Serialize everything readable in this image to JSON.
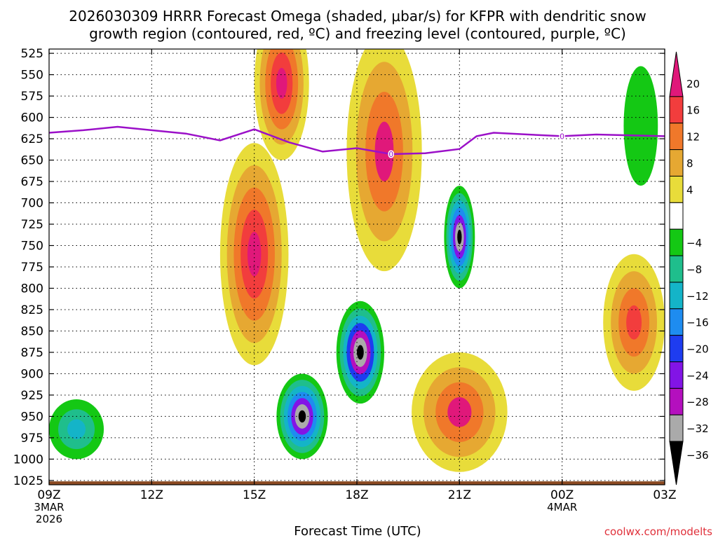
{
  "chart_data": {
    "type": "contour-time-height",
    "title": "2026030309 HRRR Forecast Omega (shaded, μbar/s) for KFPR with dendritic snow growth region (contoured, red, ºC) and freezing level (contoured, purple, ºC)",
    "title_line1": "2026030309 HRRR Forecast Omega (shaded, μbar/s) for KFPR with dendritic snow",
    "title_line2": "growth region (contoured, red, ºC) and freezing level (contoured, purple, ºC)",
    "xlabel": "Forecast Time (UTC)",
    "credit": "coolwx.com/modelts",
    "x_range_hours": [
      0,
      18
    ],
    "y_range_hpa": [
      1030,
      520
    ],
    "pressure_levels": [
      525,
      550,
      575,
      600,
      625,
      650,
      675,
      700,
      725,
      750,
      775,
      800,
      825,
      850,
      875,
      900,
      925,
      950,
      975,
      1000,
      1025
    ],
    "x_ticks": [
      {
        "hour": 0,
        "label": "09Z",
        "date1": "3MAR",
        "date2": "2026"
      },
      {
        "hour": 3,
        "label": "12Z"
      },
      {
        "hour": 6,
        "label": "15Z"
      },
      {
        "hour": 9,
        "label": "18Z"
      },
      {
        "hour": 12,
        "label": "21Z"
      },
      {
        "hour": 15,
        "label": "00Z",
        "date1": "4MAR"
      },
      {
        "hour": 18,
        "label": "03Z"
      }
    ],
    "colorbar": {
      "labels": [
        "20",
        "16",
        "12",
        "8",
        "4",
        "−4",
        "−8",
        "−12",
        "−16",
        "−20",
        "−24",
        "−28",
        "−32",
        "−36"
      ],
      "bins": [
        {
          "lo": 20,
          "hi": 24,
          "color": "#e0187a"
        },
        {
          "lo": 16,
          "hi": 20,
          "color": "#f23d3d"
        },
        {
          "lo": 12,
          "hi": 16,
          "color": "#f0782a"
        },
        {
          "lo": 8,
          "hi": 12,
          "color": "#e6a832"
        },
        {
          "lo": 4,
          "hi": 8,
          "color": "#e8dc3a"
        },
        {
          "lo": -4,
          "hi": 4,
          "color": "#ffffff"
        },
        {
          "lo": -8,
          "hi": -4,
          "color": "#14c814"
        },
        {
          "lo": -12,
          "hi": -8,
          "color": "#1fbe8c"
        },
        {
          "lo": -16,
          "hi": -12,
          "color": "#14b4c8"
        },
        {
          "lo": -20,
          "hi": -16,
          "color": "#1e8cf0"
        },
        {
          "lo": -24,
          "hi": -20,
          "color": "#1e3cf0"
        },
        {
          "lo": -28,
          "hi": -24,
          "color": "#8214e6"
        },
        {
          "lo": -32,
          "hi": -28,
          "color": "#b40fbe"
        },
        {
          "lo": -36,
          "hi": -32,
          "color": "#aaaaaa"
        },
        {
          "lo": -40,
          "hi": -36,
          "color": "#000000"
        }
      ]
    },
    "freezing_level": {
      "label": "0",
      "color": "#9b10c8",
      "points": [
        {
          "h": 0,
          "p": 618
        },
        {
          "h": 1,
          "p": 615
        },
        {
          "h": 2,
          "p": 611
        },
        {
          "h": 3,
          "p": 615
        },
        {
          "h": 4,
          "p": 619
        },
        {
          "h": 5,
          "p": 627
        },
        {
          "h": 6,
          "p": 614
        },
        {
          "h": 7,
          "p": 629
        },
        {
          "h": 8,
          "p": 640
        },
        {
          "h": 9,
          "p": 636
        },
        {
          "h": 10,
          "p": 643
        },
        {
          "h": 11,
          "p": 642
        },
        {
          "h": 12,
          "p": 637
        },
        {
          "h": 12.5,
          "p": 622
        },
        {
          "h": 13,
          "p": 618
        },
        {
          "h": 14,
          "p": 620
        },
        {
          "h": 15,
          "p": 622
        },
        {
          "h": 16,
          "p": 620
        },
        {
          "h": 17,
          "p": 621
        },
        {
          "h": 18,
          "p": 622
        }
      ],
      "label_points": [
        {
          "h": 10,
          "p": 643
        },
        {
          "h": 15,
          "p": 622
        }
      ]
    },
    "omega_features": [
      {
        "name": "ascent-core-21z",
        "h": 12,
        "p": 740,
        "rh": 0.45,
        "rp": 60,
        "colors": [
          "#14c814",
          "#1fbe8c",
          "#14b4c8",
          "#1e8cf0",
          "#8214e6",
          "#aaaaaa",
          "#000000"
        ]
      },
      {
        "name": "ascent-core-18z",
        "h": 9.1,
        "p": 875,
        "rh": 0.7,
        "rp": 60,
        "colors": [
          "#14c814",
          "#1fbe8c",
          "#14b4c8",
          "#1e3cf0",
          "#b40fbe",
          "#aaaaaa",
          "#000000"
        ]
      },
      {
        "name": "ascent-core-16z",
        "h": 7.4,
        "p": 950,
        "rh": 0.75,
        "rp": 50,
        "colors": [
          "#14c814",
          "#1fbe8c",
          "#14b4c8",
          "#1e8cf0",
          "#8214e6",
          "#aaaaaa",
          "#000000"
        ]
      },
      {
        "name": "descent-column-1830z",
        "h": 9.8,
        "p": 640,
        "rh": 1.1,
        "rp": 140,
        "colors": [
          "#e8dc3a",
          "#e6a832",
          "#f0782a",
          "#e0187a"
        ]
      },
      {
        "name": "descent-low-21z",
        "h": 12,
        "p": 945,
        "rh": 1.4,
        "rp": 70,
        "colors": [
          "#e8dc3a",
          "#e6a832",
          "#f0782a",
          "#e0187a"
        ]
      },
      {
        "name": "descent-15z",
        "h": 6,
        "p": 760,
        "rh": 1.0,
        "rp": 130,
        "colors": [
          "#e8dc3a",
          "#e6a832",
          "#f0782a",
          "#f23d3d",
          "#e0187a"
        ]
      },
      {
        "name": "descent-1530z-upper",
        "h": 6.8,
        "p": 560,
        "rh": 0.8,
        "rp": 90,
        "colors": [
          "#e8dc3a",
          "#e6a832",
          "#f0782a",
          "#f23d3d",
          "#e0187a"
        ]
      },
      {
        "name": "descent-02z",
        "h": 17.1,
        "p": 840,
        "rh": 0.9,
        "rp": 80,
        "colors": [
          "#e8dc3a",
          "#e6a832",
          "#f0782a",
          "#f23d3d"
        ]
      },
      {
        "name": "ascent-10z",
        "h": 0.8,
        "p": 965,
        "rh": 0.8,
        "rp": 35,
        "colors": [
          "#14c814",
          "#1fbe8c",
          "#14b4c8"
        ]
      },
      {
        "name": "ascent-02z-upper",
        "h": 17.3,
        "p": 610,
        "rh": 0.5,
        "rp": 70,
        "colors": [
          "#14c814"
        ]
      }
    ]
  }
}
